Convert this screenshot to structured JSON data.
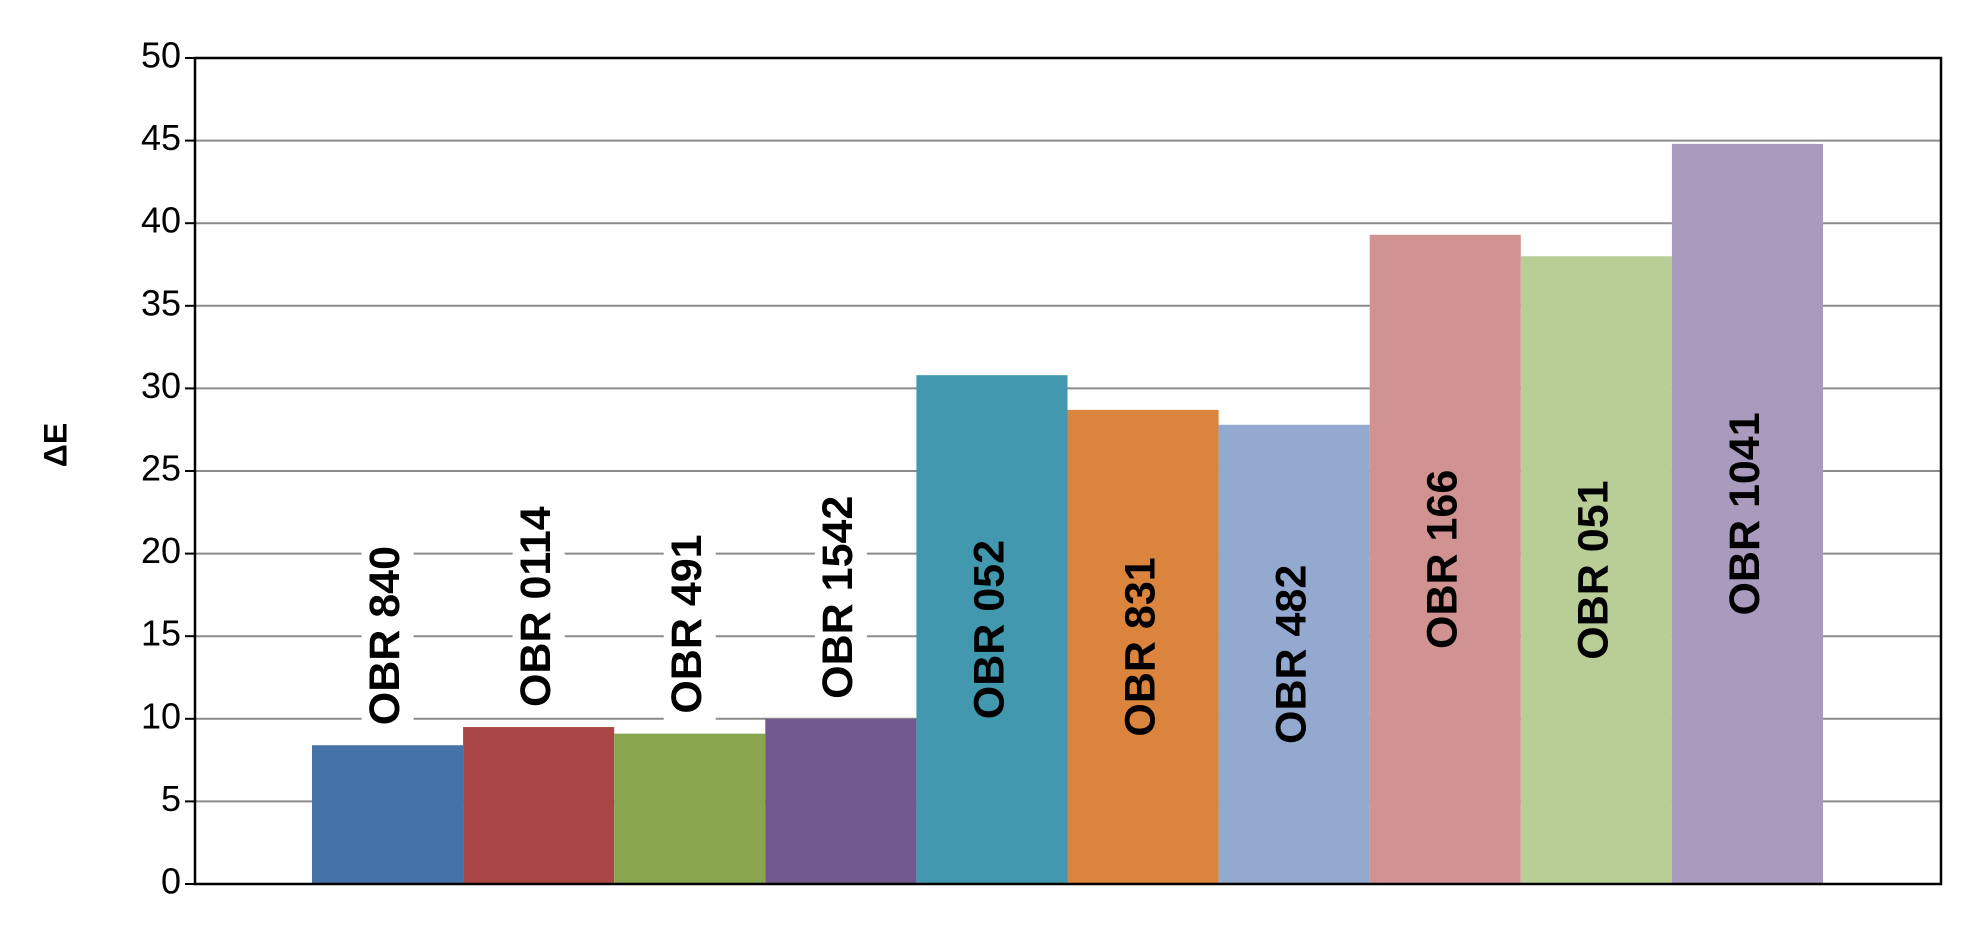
{
  "chart_data": {
    "type": "bar",
    "y_label": "ΔE",
    "categories": [
      "OBR 840",
      "OBR 0114",
      "OBR 491",
      "OBR 1542",
      "OBR 052",
      "OBR 831",
      "OBR 482",
      "OBR 166",
      "OBR 051",
      "OBR 1041"
    ],
    "values": [
      8.4,
      9.5,
      9.1,
      10.0,
      30.8,
      28.7,
      27.8,
      39.3,
      38.0,
      44.8
    ],
    "colors": [
      "#4572a7",
      "#aa4643",
      "#89a54e",
      "#71588f",
      "#4198af",
      "#db843d",
      "#93a9cf",
      "#d19392",
      "#b9cd96",
      "#a99bbd"
    ],
    "ylim": [
      0,
      50
    ],
    "yticks": [
      0,
      5,
      10,
      15,
      20,
      25,
      30,
      35,
      40,
      45,
      50
    ],
    "grid": true
  }
}
